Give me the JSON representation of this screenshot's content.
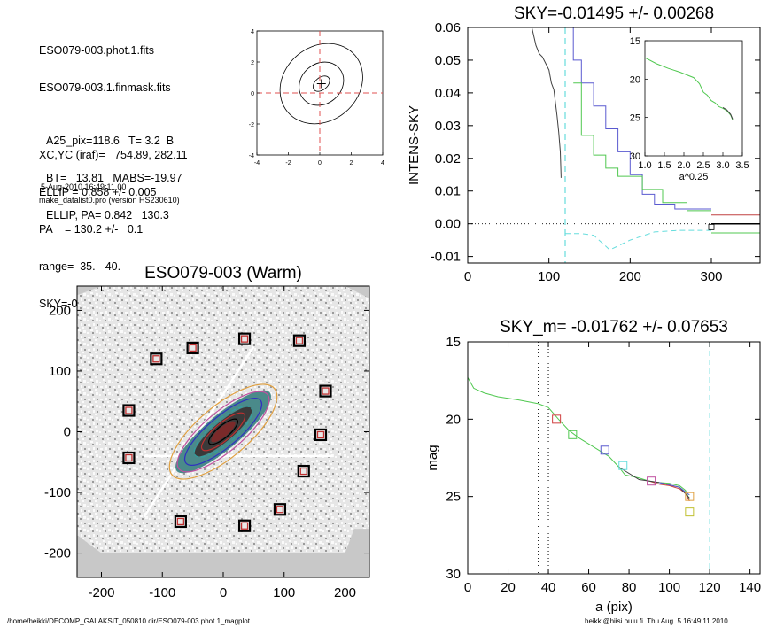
{
  "header": {
    "lines": [
      "ESO079-003.phot.1.fits",
      "ESO079-003.1.finmask.fits",
      "XC,YC (iraf)=   754.89, 282.11",
      "ELLIP = 0.858 +/- 0.005",
      "PA    = 130.2 +/-   0.1",
      "range=  35.-  40.",
      "SKY=-0.01495 +/- 0.00268"
    ],
    "params": [
      "A25_pix=118.6   T= 3.2  B",
      "BT=   13.81   MABS=-19.97",
      "ELLIP, PA= 0.842   130.3"
    ],
    "date": "5-Aug-2010 16:49:11.00",
    "program": "make_datalist0.pro (version HS230610)"
  },
  "footer": {
    "path": "/home/heikki/DECOMP_GALAKSIT_050810.dir/ESO079-003.phot.1_magplot",
    "user": "heikki@hiisi.oulu.fi  Thu Aug  5 16:49:11 2010"
  },
  "chart_data": [
    {
      "type": "line",
      "panel": "ellipse-contours",
      "xlim": [
        -4,
        4
      ],
      "ylim": [
        -4,
        4
      ],
      "xticks": [
        -4,
        -2,
        0,
        2,
        4
      ],
      "yticks": [
        -4,
        -2,
        0,
        2,
        4
      ],
      "crosshair": {
        "x": 0,
        "y": 0,
        "color": "#e05050"
      },
      "center": [
        0.1,
        0.6
      ],
      "contours": [
        {
          "a": 0.6,
          "b": 0.4
        },
        {
          "a": 1.5,
          "b": 1.3
        },
        {
          "a": 2.8,
          "b": 2.4
        }
      ]
    },
    {
      "type": "line",
      "panel": "sky-profile",
      "title": "SKY=-0.01495 +/- 0.00268",
      "ylabel": "INTENS-SKY",
      "xlim": [
        0,
        360
      ],
      "ylim": [
        -0.012,
        0.06
      ],
      "xticks": [
        0,
        100,
        200,
        300
      ],
      "yticks": [
        -0.01,
        0.0,
        0.01,
        0.02,
        0.03,
        0.04,
        0.05,
        0.06
      ],
      "ytick_labels": [
        "-0.01",
        "0.00",
        "0.01",
        "0.02",
        "0.03",
        "0.04",
        "0.05",
        "0.06"
      ],
      "sky_marker_x": 120,
      "zero_line": 0,
      "series": [
        {
          "color": "#404040",
          "points": [
            [
              78,
              0.061
            ],
            [
              84,
              0.0545
            ],
            [
              88,
              0.052
            ],
            [
              92,
              0.051
            ],
            [
              96,
              0.049
            ],
            [
              100,
              0.047
            ],
            [
              103,
              0.043
            ],
            [
              106,
              0.041
            ],
            [
              108,
              0.037
            ],
            [
              110,
              0.033
            ],
            [
              112,
              0.028
            ],
            [
              114,
              0.022
            ],
            [
              115,
              0.014
            ]
          ]
        },
        {
          "color": "#5a5ad0",
          "step": true,
          "points": [
            [
              130,
              0.061
            ],
            [
              130,
              0.05
            ],
            [
              140,
              0.05
            ],
            [
              140,
              0.043
            ],
            [
              155,
              0.043
            ],
            [
              155,
              0.036
            ],
            [
              170,
              0.036
            ],
            [
              170,
              0.029
            ],
            [
              185,
              0.029
            ],
            [
              185,
              0.022
            ],
            [
              200,
              0.022
            ],
            [
              200,
              0.015
            ],
            [
              215,
              0.015
            ],
            [
              215,
              0.009
            ],
            [
              230,
              0.009
            ],
            [
              230,
              0.006
            ],
            [
              255,
              0.006
            ],
            [
              255,
              0.0045
            ],
            [
              300,
              0.0045
            ]
          ]
        },
        {
          "color": "#50c850",
          "step": true,
          "points": [
            [
              130,
              0.043
            ],
            [
              140,
              0.043
            ],
            [
              140,
              0.027
            ],
            [
              155,
              0.027
            ],
            [
              155,
              0.021
            ],
            [
              170,
              0.021
            ],
            [
              170,
              0.017
            ],
            [
              185,
              0.017
            ],
            [
              185,
              0.0145
            ],
            [
              215,
              0.0145
            ],
            [
              215,
              0.0105
            ],
            [
              240,
              0.0105
            ],
            [
              240,
              0.0065
            ],
            [
              270,
              0.0065
            ],
            [
              270,
              0.004
            ],
            [
              300,
              0.004
            ]
          ]
        },
        {
          "color": "#66dddd",
          "dash": "6,4",
          "points": [
            [
              120,
              -0.003
            ],
            [
              140,
              -0.003
            ],
            [
              155,
              -0.0035
            ],
            [
              175,
              -0.008
            ],
            [
              200,
              -0.005
            ],
            [
              230,
              -0.0025
            ],
            [
              260,
              -0.002
            ],
            [
              300,
              -0.002
            ]
          ]
        },
        {
          "color": "#c04040",
          "points": [
            [
              300,
              0.0027
            ],
            [
              360,
              0.0027
            ]
          ]
        },
        {
          "color": "#000000",
          "points": [
            [
              300,
              0.0
            ],
            [
              360,
              0.0
            ]
          ]
        },
        {
          "color": "#50c850",
          "points": [
            [
              300,
              -0.0028
            ],
            [
              360,
              -0.0028
            ]
          ]
        }
      ],
      "inset": {
        "xlabel": "a^0.25",
        "xlim": [
          1.0,
          3.5
        ],
        "ylim": [
          15,
          30
        ],
        "xticks": [
          1.0,
          1.5,
          2.0,
          2.5,
          3.0,
          3.5
        ],
        "xtick_labels": [
          "1.0",
          "1.5",
          "2.0",
          "2.5",
          "3.0",
          "3.5"
        ],
        "yticks": [
          15,
          20,
          25,
          30
        ],
        "series": [
          {
            "color": "#50c850",
            "points": [
              [
                1.0,
                17.2
              ],
              [
                1.3,
                18.0
              ],
              [
                1.6,
                18.6
              ],
              [
                1.9,
                19.1
              ],
              [
                2.1,
                19.5
              ],
              [
                2.25,
                19.8
              ],
              [
                2.4,
                20.6
              ],
              [
                2.5,
                21.7
              ],
              [
                2.6,
                22.1
              ],
              [
                2.7,
                22.8
              ],
              [
                2.8,
                23.1
              ],
              [
                2.9,
                23.6
              ],
              [
                3.0,
                23.8
              ],
              [
                3.1,
                24.1
              ],
              [
                3.2,
                24.7
              ],
              [
                3.25,
                25.3
              ]
            ]
          },
          {
            "color": "#404040",
            "points": [
              [
                3.0,
                23.7
              ],
              [
                3.1,
                24.0
              ],
              [
                3.2,
                24.6
              ],
              [
                3.25,
                25.2
              ]
            ]
          }
        ]
      }
    },
    {
      "type": "line",
      "panel": "mag-profile",
      "title": "SKY_m= -0.01762 +/- 0.07653",
      "xlabel": "a (pix)",
      "ylabel": "mag",
      "xlim": [
        0,
        145
      ],
      "ylim": [
        30,
        15
      ],
      "xticks": [
        0,
        20,
        40,
        60,
        80,
        100,
        120,
        140
      ],
      "yticks": [
        15,
        20,
        25,
        30
      ],
      "vlines": [
        {
          "x": 35,
          "color": "#000000",
          "dash": "1,3"
        },
        {
          "x": 40,
          "color": "#000000",
          "dash": "1,3"
        },
        {
          "x": 120,
          "color": "#66dddd",
          "dash": "6,4"
        }
      ],
      "series": [
        {
          "color": "#50c850",
          "points": [
            [
              0,
              17.3
            ],
            [
              3,
              18.0
            ],
            [
              8,
              18.3
            ],
            [
              15,
              18.55
            ],
            [
              25,
              18.75
            ],
            [
              35,
              19.0
            ],
            [
              40,
              19.25
            ],
            [
              45,
              20.0
            ],
            [
              50,
              20.7
            ],
            [
              55,
              21.2
            ],
            [
              60,
              21.6
            ],
            [
              65,
              22.0
            ],
            [
              70,
              22.4
            ],
            [
              75,
              23.1
            ],
            [
              78,
              23.6
            ],
            [
              85,
              23.8
            ],
            [
              90,
              24.0
            ],
            [
              95,
              24.1
            ],
            [
              100,
              24.15
            ],
            [
              105,
              24.3
            ],
            [
              108,
              24.6
            ],
            [
              110,
              25.2
            ]
          ]
        },
        {
          "color": "#d04040",
          "points": [
            [
              90,
              24.0
            ],
            [
              95,
              24.2
            ],
            [
              100,
              24.3
            ],
            [
              105,
              24.5
            ],
            [
              108,
              24.8
            ],
            [
              110,
              25.3
            ]
          ]
        },
        {
          "color": "#404040",
          "points": [
            [
              75,
              23.1
            ],
            [
              85,
              23.9
            ],
            [
              95,
              24.1
            ],
            [
              105,
              24.4
            ],
            [
              110,
              25.1
            ]
          ]
        },
        {
          "color": "#5a5ad0",
          "points": [
            [
              95,
              24.1
            ],
            [
              105,
              24.4
            ],
            [
              110,
              24.9
            ]
          ]
        }
      ],
      "markers": [
        {
          "x": 44,
          "y": 20.0,
          "color": "#d04040"
        },
        {
          "x": 52,
          "y": 21.0,
          "color": "#50c850"
        },
        {
          "x": 68,
          "y": 22.0,
          "color": "#5a5ad0"
        },
        {
          "x": 77,
          "y": 23.0,
          "color": "#66dddd"
        },
        {
          "x": 91,
          "y": 24.0,
          "color": "#c050a0"
        },
        {
          "x": 110,
          "y": 25.0,
          "color": "#e0a040"
        },
        {
          "x": 110,
          "y": 26.0,
          "color": "#c0c030"
        }
      ]
    },
    {
      "type": "scatter",
      "panel": "image",
      "title": "ESO079-003 (Warm)",
      "xlim": [
        -240,
        240
      ],
      "ylim": [
        -240,
        240
      ],
      "xticks": [
        -200,
        -100,
        0,
        100,
        200
      ],
      "yticks": [
        -200,
        -100,
        0,
        100,
        200
      ],
      "galaxy": {
        "pa": 130.2,
        "ellipses": [
          {
            "a": 30,
            "b": 10,
            "color": "#000000"
          },
          {
            "a": 45,
            "b": 14,
            "color": "#c03030"
          },
          {
            "a": 60,
            "b": 20,
            "color": "#30a0a0"
          },
          {
            "a": 80,
            "b": 25,
            "color": "#3030c0"
          },
          {
            "a": 95,
            "b": 32,
            "color": "#c050a0"
          },
          {
            "a": 110,
            "b": 42,
            "color": "#e0a040"
          }
        ]
      },
      "sky_boxes": [
        [
          -110,
          120
        ],
        [
          -50,
          138
        ],
        [
          35,
          153
        ],
        [
          125,
          150
        ],
        [
          168,
          67
        ],
        [
          160,
          -5
        ],
        [
          -155,
          35
        ],
        [
          -155,
          -43
        ],
        [
          132,
          -65
        ],
        [
          93,
          -128
        ],
        [
          -70,
          -148
        ],
        [
          35,
          -155
        ]
      ]
    }
  ]
}
